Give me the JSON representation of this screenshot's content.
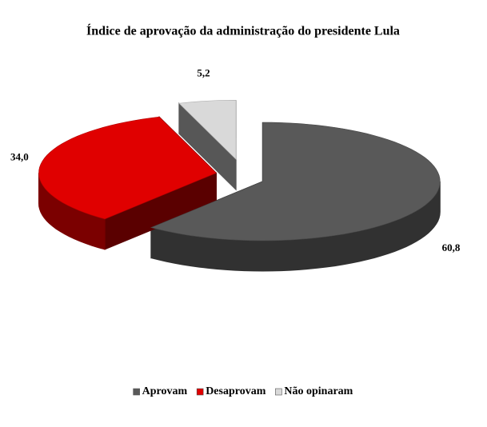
{
  "chart_data": {
    "type": "pie",
    "title": "Índice de aprovação da administração do presidente Lula",
    "categories": [
      "Aprovam",
      "Desaprovam",
      "Não opinaram"
    ],
    "values": [
      60.8,
      34.0,
      5.2
    ],
    "value_labels": [
      "60,8",
      "34,0",
      "5,2"
    ],
    "colors": [
      "#595959",
      "#e00000",
      "#d9d9d9"
    ],
    "legend": "bottom"
  }
}
